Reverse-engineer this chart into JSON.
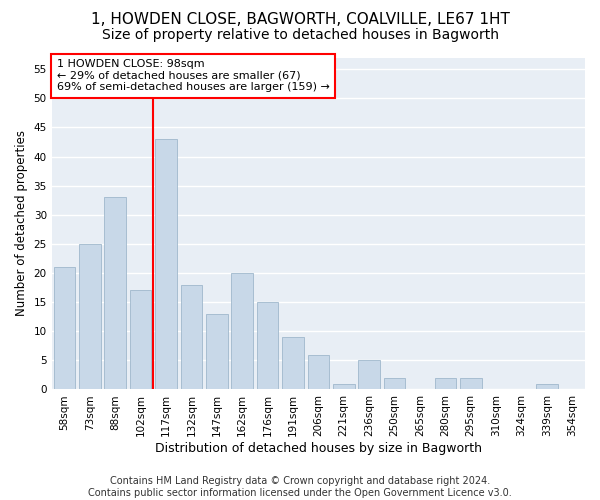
{
  "title": "1, HOWDEN CLOSE, BAGWORTH, COALVILLE, LE67 1HT",
  "subtitle": "Size of property relative to detached houses in Bagworth",
  "xlabel": "Distribution of detached houses by size in Bagworth",
  "ylabel": "Number of detached properties",
  "bin_labels": [
    "58sqm",
    "73sqm",
    "88sqm",
    "102sqm",
    "117sqm",
    "132sqm",
    "147sqm",
    "162sqm",
    "176sqm",
    "191sqm",
    "206sqm",
    "221sqm",
    "236sqm",
    "250sqm",
    "265sqm",
    "280sqm",
    "295sqm",
    "310sqm",
    "324sqm",
    "339sqm",
    "354sqm"
  ],
  "bar_values": [
    21,
    25,
    33,
    17,
    43,
    18,
    13,
    20,
    15,
    9,
    6,
    1,
    5,
    2,
    0,
    2,
    2,
    0,
    0,
    1,
    0
  ],
  "bar_color": "#c8d8e8",
  "bar_edge_color": "#a0b8cc",
  "bar_width": 0.85,
  "property_line_x": 3.5,
  "property_line_color": "red",
  "annotation_text": "1 HOWDEN CLOSE: 98sqm\n← 29% of detached houses are smaller (67)\n69% of semi-detached houses are larger (159) →",
  "annotation_box_color": "white",
  "annotation_box_edge": "red",
  "ylim": [
    0,
    57
  ],
  "yticks": [
    0,
    5,
    10,
    15,
    20,
    25,
    30,
    35,
    40,
    45,
    50,
    55
  ],
  "background_color": "#e8eef5",
  "grid_color": "white",
  "footer": "Contains HM Land Registry data © Crown copyright and database right 2024.\nContains public sector information licensed under the Open Government Licence v3.0.",
  "title_fontsize": 11,
  "subtitle_fontsize": 10,
  "xlabel_fontsize": 9,
  "ylabel_fontsize": 8.5,
  "tick_fontsize": 7.5,
  "annotation_fontsize": 8,
  "footer_fontsize": 7
}
